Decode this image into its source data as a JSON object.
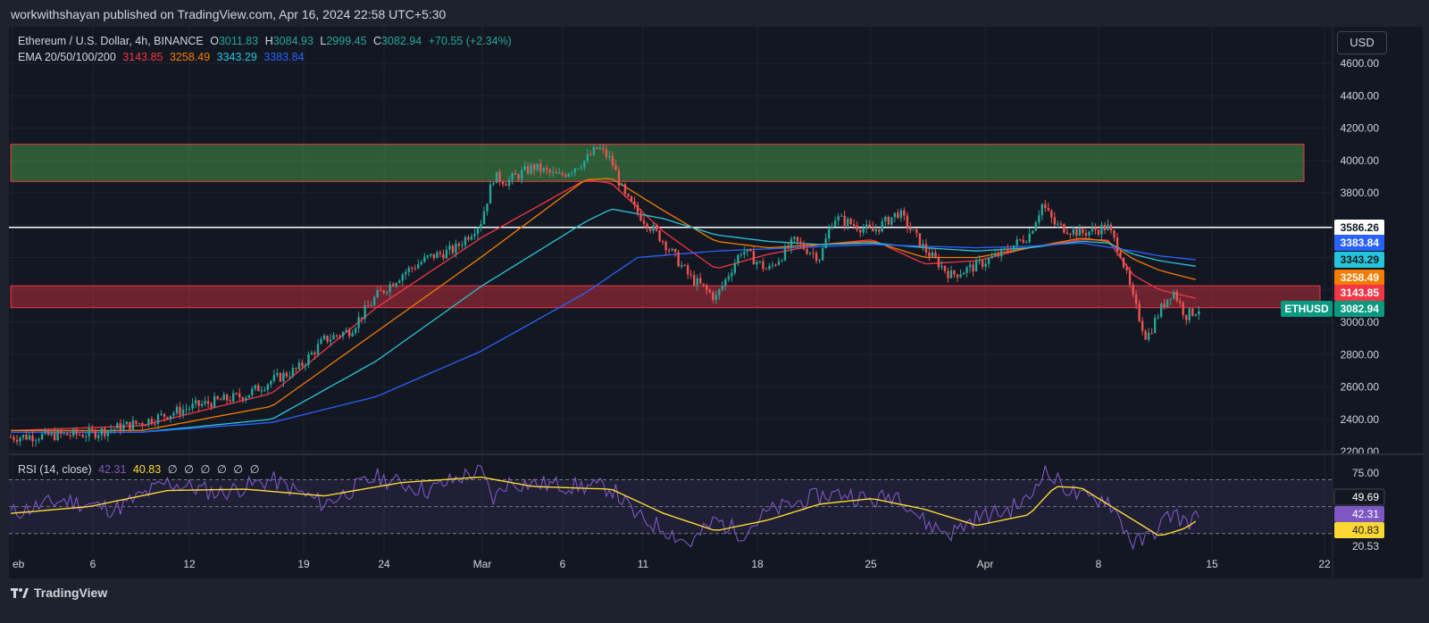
{
  "header": {
    "published_by": "workwithshayan published on TradingView.com, Apr 16, 2024 22:58 UTC+5:30"
  },
  "currency_button": "USD",
  "symbol_legend": {
    "name": "Ethereum / U.S. Dollar, 4h, BINANCE",
    "o_label": "O",
    "o_value": "3011.83",
    "h_label": "H",
    "h_value": "3084.93",
    "l_label": "L",
    "l_value": "2999.45",
    "c_label": "C",
    "c_value": "3082.94",
    "change": "+70.55 (+2.34%)"
  },
  "ema_legend": {
    "label": "EMA 20/50/100/200",
    "v20": "3143.85",
    "v50": "3258.49",
    "v100": "3343.29",
    "v200": "3383.84"
  },
  "rsi_legend": {
    "label": "RSI (14, close)",
    "rsi": "42.31",
    "sma": "40.83",
    "extra": [
      "∅",
      "∅",
      "∅",
      "∅",
      "∅",
      "∅"
    ]
  },
  "footer": {
    "brand": "TradingView"
  },
  "colors": {
    "bg": "#131722",
    "up": "#26a69a",
    "down": "#ef5350",
    "ema20": "#f23645",
    "ema50": "#f57c00",
    "ema100": "#26c6da",
    "ema200": "#2962ff",
    "rsi": "#7e57c2",
    "rsi_sma": "#fdd835",
    "resistance_zone": "#4caf50",
    "support_zone": "#f23645"
  },
  "chart_data": [
    {
      "type": "candlestick",
      "title": "Ethereum / U.S. Dollar, 4h, BINANCE",
      "y_ticks": [
        "4600.00",
        "4400.00",
        "4200.00",
        "4000.00",
        "3800.00",
        "3600.00",
        "3400.00",
        "3200.00",
        "3000.00",
        "2800.00",
        "2600.00",
        "2400.00",
        "2200.00"
      ],
      "ylim": [
        2180,
        4700
      ],
      "x_ticks": [
        "Feb",
        "6",
        "12",
        "19",
        "24",
        "Mar",
        "6",
        "11",
        "18",
        "25",
        "Apr",
        "8",
        "15",
        "22"
      ],
      "x_tick_label_first": "eb",
      "horizontal_line": 3586.26,
      "zones": [
        {
          "name": "resistance",
          "from": 3870,
          "to": 4100
        },
        {
          "name": "support",
          "from": 3090,
          "to": 3225
        }
      ],
      "price_labels": [
        {
          "value": "3586.26",
          "color": "#ffffff",
          "text_color": "#131722"
        },
        {
          "value": "3383.84",
          "color": "#2962ff",
          "text_color": "#ffffff"
        },
        {
          "value": "3343.29",
          "color": "#26c6da",
          "text_color": "#131722"
        },
        {
          "value": "3258.49",
          "color": "#f57c00",
          "text_color": "#ffffff"
        },
        {
          "value": "3143.85",
          "color": "#f23645",
          "text_color": "#ffffff"
        },
        {
          "value": "3082.94",
          "color": "#089981",
          "text_color": "#ffffff",
          "tag": "ETHUSD"
        }
      ],
      "close_path": [
        [
          0,
          2290
        ],
        [
          6,
          2310
        ],
        [
          10,
          2380
        ],
        [
          14,
          2480
        ],
        [
          18,
          2550
        ],
        [
          20,
          2640
        ],
        [
          22,
          2710
        ],
        [
          24,
          2890
        ],
        [
          26,
          2950
        ],
        [
          28,
          3160
        ],
        [
          30,
          3300
        ],
        [
          32,
          3400
        ],
        [
          34,
          3450
        ],
        [
          36,
          3620
        ],
        [
          37,
          3900
        ],
        [
          38,
          3870
        ],
        [
          40,
          3960
        ],
        [
          42,
          3900
        ],
        [
          44,
          4000
        ],
        [
          45,
          4080
        ],
        [
          46,
          4000
        ],
        [
          47,
          3780
        ],
        [
          48,
          3680
        ],
        [
          50,
          3500
        ],
        [
          52,
          3280
        ],
        [
          54,
          3150
        ],
        [
          56,
          3450
        ],
        [
          58,
          3320
        ],
        [
          60,
          3500
        ],
        [
          62,
          3400
        ],
        [
          63,
          3650
        ],
        [
          64,
          3620
        ],
        [
          66,
          3560
        ],
        [
          68,
          3680
        ],
        [
          70,
          3450
        ],
        [
          72,
          3290
        ],
        [
          74,
          3350
        ],
        [
          76,
          3430
        ],
        [
          78,
          3540
        ],
        [
          79,
          3730
        ],
        [
          80,
          3600
        ],
        [
          82,
          3550
        ],
        [
          84,
          3590
        ],
        [
          85,
          3430
        ],
        [
          86,
          3130
        ],
        [
          87,
          2900
        ],
        [
          88,
          3070
        ],
        [
          89,
          3200
        ],
        [
          90,
          3040
        ],
        [
          91,
          3082.94
        ]
      ],
      "ema": [
        {
          "name": "EMA 20",
          "points": [
            [
              0,
              2330
            ],
            [
              10,
              2360
            ],
            [
              20,
              2560
            ],
            [
              28,
              3090
            ],
            [
              36,
              3520
            ],
            [
              44,
              3880
            ],
            [
              46,
              3860
            ],
            [
              50,
              3560
            ],
            [
              54,
              3330
            ],
            [
              58,
              3420
            ],
            [
              62,
              3480
            ],
            [
              66,
              3510
            ],
            [
              70,
              3360
            ],
            [
              74,
              3380
            ],
            [
              78,
              3460
            ],
            [
              82,
              3510
            ],
            [
              84,
              3510
            ],
            [
              86,
              3290
            ],
            [
              88,
              3200
            ],
            [
              91,
              3143.85
            ]
          ]
        },
        {
          "name": "EMA 50",
          "points": [
            [
              0,
              2330
            ],
            [
              10,
              2330
            ],
            [
              20,
              2480
            ],
            [
              28,
              2940
            ],
            [
              36,
              3400
            ],
            [
              44,
              3880
            ],
            [
              46,
              3890
            ],
            [
              50,
              3690
            ],
            [
              54,
              3500
            ],
            [
              58,
              3460
            ],
            [
              62,
              3480
            ],
            [
              66,
              3500
            ],
            [
              70,
              3400
            ],
            [
              74,
              3400
            ],
            [
              78,
              3460
            ],
            [
              82,
              3520
            ],
            [
              84,
              3500
            ],
            [
              86,
              3390
            ],
            [
              88,
              3320
            ],
            [
              91,
              3258.49
            ]
          ]
        },
        {
          "name": "EMA 100",
          "points": [
            [
              0,
              2320
            ],
            [
              10,
              2320
            ],
            [
              20,
              2400
            ],
            [
              28,
              2760
            ],
            [
              36,
              3220
            ],
            [
              44,
              3620
            ],
            [
              46,
              3700
            ],
            [
              50,
              3640
            ],
            [
              54,
              3540
            ],
            [
              58,
              3500
            ],
            [
              62,
              3480
            ],
            [
              66,
              3490
            ],
            [
              70,
              3460
            ],
            [
              74,
              3440
            ],
            [
              78,
              3460
            ],
            [
              82,
              3500
            ],
            [
              84,
              3490
            ],
            [
              86,
              3420
            ],
            [
              88,
              3380
            ],
            [
              91,
              3343.29
            ]
          ]
        },
        {
          "name": "EMA 200",
          "points": [
            [
              0,
              2320
            ],
            [
              10,
              2320
            ],
            [
              20,
              2380
            ],
            [
              28,
              2540
            ],
            [
              36,
              2820
            ],
            [
              44,
              3180
            ],
            [
              48,
              3400
            ],
            [
              54,
              3440
            ],
            [
              60,
              3460
            ],
            [
              66,
              3480
            ],
            [
              70,
              3470
            ],
            [
              74,
              3460
            ],
            [
              78,
              3470
            ],
            [
              82,
              3490
            ],
            [
              86,
              3440
            ],
            [
              88,
              3410
            ],
            [
              91,
              3383.84
            ]
          ]
        }
      ]
    },
    {
      "type": "line",
      "title": "RSI (14, close)",
      "y_ticks": [
        "75.00",
        "49.69",
        "42.31",
        "40.83",
        "20.53"
      ],
      "ylim": [
        10,
        88
      ],
      "levels": [
        70,
        50,
        30
      ],
      "rsi_path": [
        [
          0,
          45
        ],
        [
          4,
          55
        ],
        [
          8,
          48
        ],
        [
          12,
          68
        ],
        [
          16,
          60
        ],
        [
          20,
          70
        ],
        [
          24,
          52
        ],
        [
          28,
          72
        ],
        [
          32,
          62
        ],
        [
          35,
          74
        ],
        [
          36,
          76
        ],
        [
          37,
          55
        ],
        [
          38,
          68
        ],
        [
          42,
          66
        ],
        [
          46,
          64
        ],
        [
          48,
          42
        ],
        [
          50,
          34
        ],
        [
          52,
          22
        ],
        [
          54,
          40
        ],
        [
          56,
          30
        ],
        [
          58,
          46
        ],
        [
          60,
          52
        ],
        [
          62,
          58
        ],
        [
          64,
          60
        ],
        [
          66,
          54
        ],
        [
          68,
          60
        ],
        [
          70,
          38
        ],
        [
          72,
          30
        ],
        [
          74,
          42
        ],
        [
          76,
          46
        ],
        [
          78,
          55
        ],
        [
          79,
          77
        ],
        [
          80,
          70
        ],
        [
          82,
          56
        ],
        [
          84,
          56
        ],
        [
          85,
          40
        ],
        [
          86,
          22
        ],
        [
          87,
          26
        ],
        [
          88,
          36
        ],
        [
          89,
          46
        ],
        [
          90,
          38
        ],
        [
          91,
          42.31
        ]
      ],
      "sma_path": [
        [
          0,
          45
        ],
        [
          6,
          50
        ],
        [
          12,
          62
        ],
        [
          18,
          63
        ],
        [
          24,
          58
        ],
        [
          30,
          68
        ],
        [
          36,
          72
        ],
        [
          40,
          65
        ],
        [
          46,
          63
        ],
        [
          50,
          45
        ],
        [
          54,
          32
        ],
        [
          58,
          40
        ],
        [
          62,
          52
        ],
        [
          66,
          56
        ],
        [
          70,
          48
        ],
        [
          74,
          36
        ],
        [
          78,
          44
        ],
        [
          80,
          65
        ],
        [
          82,
          64
        ],
        [
          86,
          40
        ],
        [
          88,
          28
        ],
        [
          90,
          34
        ],
        [
          91,
          40.83
        ]
      ]
    }
  ]
}
